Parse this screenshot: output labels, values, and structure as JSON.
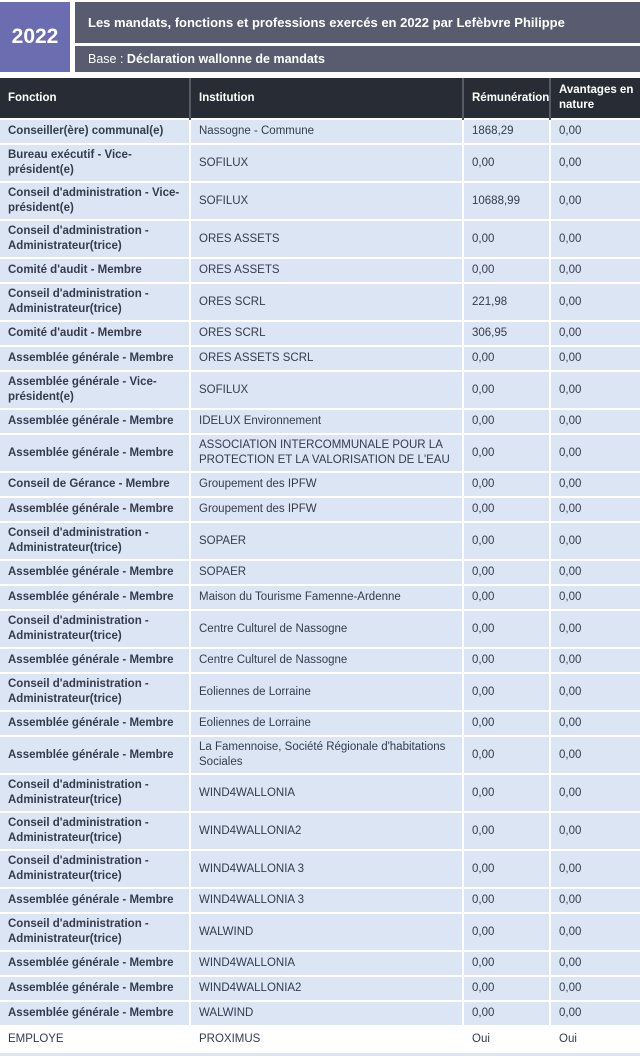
{
  "header": {
    "year": "2022",
    "title": "Les mandats, fonctions et professions exercés en 2022 par Lefèbvre Philippe",
    "base_label": "Base : ",
    "base_value": "Déclaration wallonne de mandats"
  },
  "colors": {
    "year_badge": "#6c6cb0",
    "header_band": "#585c6e",
    "table_header": "#282d35",
    "row_blue": "#dbe5f4",
    "text_dark": "#333c4e"
  },
  "table": {
    "columns": [
      "Fonction",
      "Institution",
      "Rémunération",
      "Avantages en nature"
    ],
    "rows": [
      {
        "fonction": "Conseiller(ère) communal(e)",
        "institution": "Nassogne - Commune",
        "remuneration": "1868,29",
        "avantages": "0,00"
      },
      {
        "fonction": "Bureau exécutif - Vice-président(e)",
        "institution": "SOFILUX",
        "remuneration": "0,00",
        "avantages": "0,00"
      },
      {
        "fonction": "Conseil d'administration - Vice-président(e)",
        "institution": "SOFILUX",
        "remuneration": "10688,99",
        "avantages": "0,00"
      },
      {
        "fonction": "Conseil d'administration - Administrateur(trice)",
        "institution": "ORES ASSETS",
        "remuneration": "0,00",
        "avantages": "0,00"
      },
      {
        "fonction": "Comité d'audit - Membre",
        "institution": "ORES ASSETS",
        "remuneration": "0,00",
        "avantages": "0,00"
      },
      {
        "fonction": "Conseil d'administration - Administrateur(trice)",
        "institution": "ORES SCRL",
        "remuneration": "221,98",
        "avantages": "0,00"
      },
      {
        "fonction": "Comité d'audit - Membre",
        "institution": "ORES SCRL",
        "remuneration": "306,95",
        "avantages": "0,00"
      },
      {
        "fonction": "Assemblée générale - Membre",
        "institution": "ORES ASSETS SCRL",
        "remuneration": "0,00",
        "avantages": "0,00"
      },
      {
        "fonction": "Assemblée générale - Vice-président(e)",
        "institution": "SOFILUX",
        "remuneration": "0,00",
        "avantages": "0,00"
      },
      {
        "fonction": "Assemblée générale - Membre",
        "institution": "IDELUX Environnement",
        "remuneration": "0,00",
        "avantages": "0,00"
      },
      {
        "fonction": "Assemblée générale - Membre",
        "institution": "ASSOCIATION INTERCOMMUNALE POUR LA PROTECTION ET LA VALORISATION DE L'EAU",
        "remuneration": "0,00",
        "avantages": "0,00"
      },
      {
        "fonction": "Conseil de Gérance - Membre",
        "institution": "Groupement des IPFW",
        "remuneration": "0,00",
        "avantages": "0,00"
      },
      {
        "fonction": "Assemblée générale - Membre",
        "institution": "Groupement des IPFW",
        "remuneration": "0,00",
        "avantages": "0,00"
      },
      {
        "fonction": "Conseil d'administration - Administrateur(trice)",
        "institution": "SOPAER",
        "remuneration": "0,00",
        "avantages": "0,00"
      },
      {
        "fonction": "Assemblée générale - Membre",
        "institution": "SOPAER",
        "remuneration": "0,00",
        "avantages": "0,00"
      },
      {
        "fonction": "Assemblée générale - Membre",
        "institution": "Maison du Tourisme Famenne-Ardenne",
        "remuneration": "0,00",
        "avantages": "0,00"
      },
      {
        "fonction": "Conseil d'administration - Administrateur(trice)",
        "institution": "Centre Culturel de Nassogne",
        "remuneration": "0,00",
        "avantages": "0,00"
      },
      {
        "fonction": "Assemblée générale - Membre",
        "institution": "Centre Culturel de Nassogne",
        "remuneration": "0,00",
        "avantages": "0,00"
      },
      {
        "fonction": "Conseil d'administration - Administrateur(trice)",
        "institution": "Eoliennes de Lorraine",
        "remuneration": "0,00",
        "avantages": "0,00"
      },
      {
        "fonction": "Assemblée générale - Membre",
        "institution": "Eoliennes de Lorraine",
        "remuneration": "0,00",
        "avantages": "0,00"
      },
      {
        "fonction": "Assemblée générale - Membre",
        "institution": "La Famennoise, Société Régionale d'habitations Sociales",
        "remuneration": "0,00",
        "avantages": "0,00"
      },
      {
        "fonction": "Conseil d'administration - Administrateur(trice)",
        "institution": "WIND4WALLONIA",
        "remuneration": "0,00",
        "avantages": "0,00"
      },
      {
        "fonction": "Conseil d'administration - Administrateur(trice)",
        "institution": "WIND4WALLONIA2",
        "remuneration": "0,00",
        "avantages": "0,00"
      },
      {
        "fonction": "Conseil d'administration - Administrateur(trice)",
        "institution": "WIND4WALLONIA 3",
        "remuneration": "0,00",
        "avantages": "0,00"
      },
      {
        "fonction": "Assemblée générale - Membre",
        "institution": "WIND4WALLONIA 3",
        "remuneration": "0,00",
        "avantages": "0,00"
      },
      {
        "fonction": "Conseil d'administration - Administrateur(trice)",
        "institution": "WALWIND",
        "remuneration": "0,00",
        "avantages": "0,00"
      },
      {
        "fonction": "Assemblée générale - Membre",
        "institution": "WIND4WALLONIA",
        "remuneration": "0,00",
        "avantages": "0,00"
      },
      {
        "fonction": "Assemblée générale - Membre",
        "institution": "WIND4WALLONIA2",
        "remuneration": "0,00",
        "avantages": "0,00"
      },
      {
        "fonction": "Assemblée générale - Membre",
        "institution": "WALWIND",
        "remuneration": "0,00",
        "avantages": "0,00"
      },
      {
        "fonction": "EMPLOYE",
        "institution": "PROXIMUS",
        "remuneration": "Oui",
        "avantages": "Oui",
        "variant": "plain"
      }
    ]
  }
}
